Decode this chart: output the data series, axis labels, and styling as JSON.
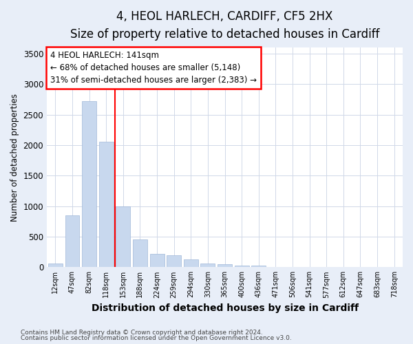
{
  "title1": "4, HEOL HARLECH, CARDIFF, CF5 2HX",
  "title2": "Size of property relative to detached houses in Cardiff",
  "xlabel": "Distribution of detached houses by size in Cardiff",
  "ylabel": "Number of detached properties",
  "categories": [
    "12sqm",
    "47sqm",
    "82sqm",
    "118sqm",
    "153sqm",
    "188sqm",
    "224sqm",
    "259sqm",
    "294sqm",
    "330sqm",
    "365sqm",
    "400sqm",
    "436sqm",
    "471sqm",
    "506sqm",
    "541sqm",
    "577sqm",
    "612sqm",
    "647sqm",
    "683sqm",
    "718sqm"
  ],
  "values": [
    55,
    850,
    2720,
    2060,
    1000,
    460,
    220,
    190,
    130,
    55,
    50,
    30,
    22,
    5,
    3,
    2,
    1,
    0,
    0,
    0,
    0
  ],
  "bar_color": "#c8d8ee",
  "bar_edgecolor": "#a0b8d8",
  "red_line_x": 3.5,
  "annotation_text": "4 HEOL HARLECH: 141sqm\n← 68% of detached houses are smaller (5,148)\n31% of semi-detached houses are larger (2,383) →",
  "ylim": [
    0,
    3600
  ],
  "yticks": [
    0,
    500,
    1000,
    1500,
    2000,
    2500,
    3000,
    3500
  ],
  "footnote1": "Contains HM Land Registry data © Crown copyright and database right 2024.",
  "footnote2": "Contains public sector information licensed under the Open Government Licence v3.0.",
  "figure_facecolor": "#e8eef8",
  "axes_facecolor": "#ffffff",
  "grid_color": "#d0d8e8",
  "title_fontsize": 12,
  "subtitle_fontsize": 10,
  "xlabel_fontsize": 10
}
